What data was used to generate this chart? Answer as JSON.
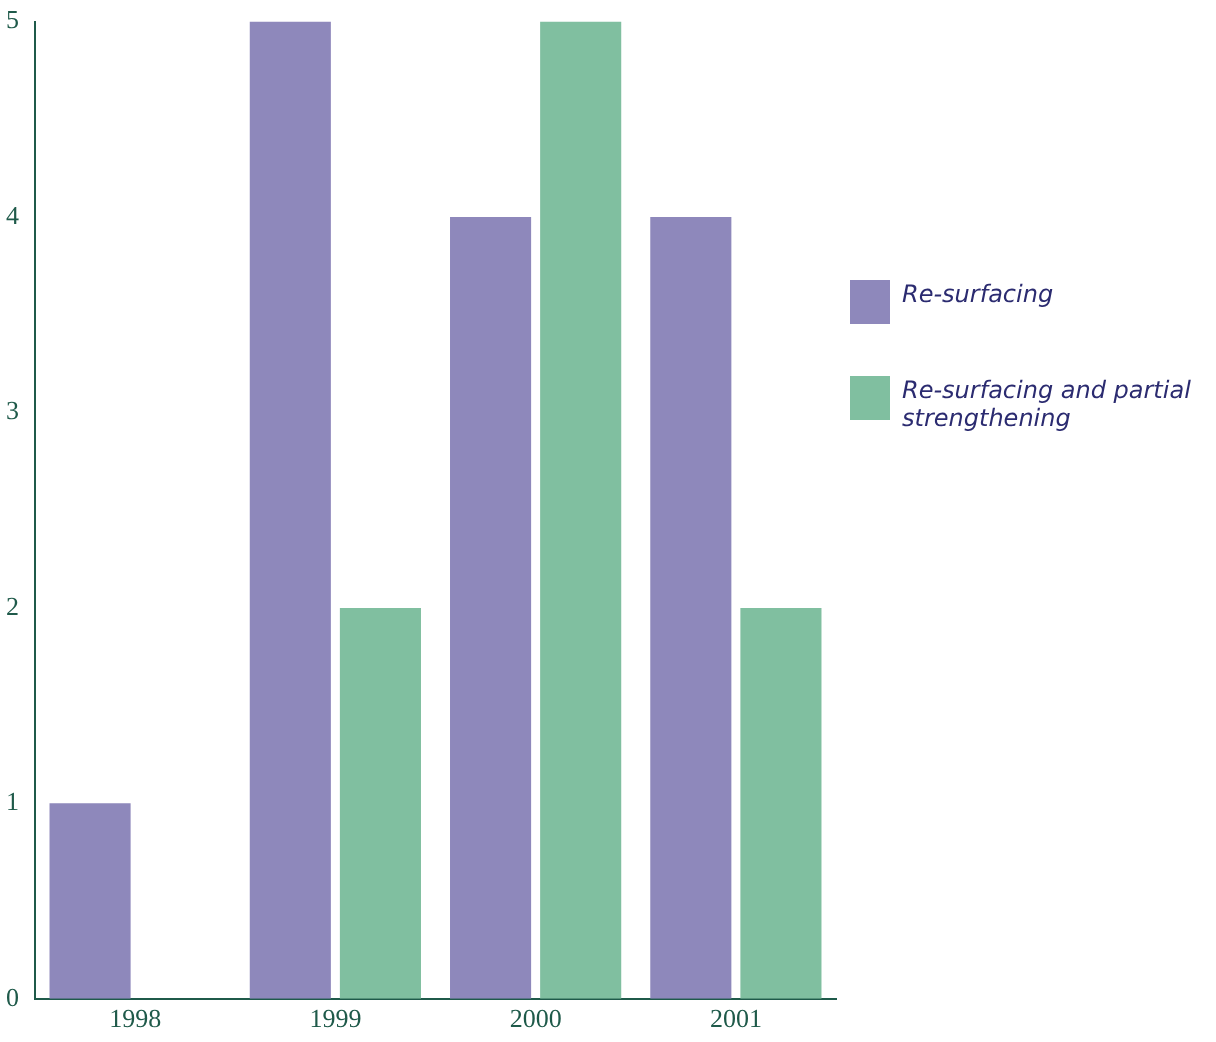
{
  "chart_data": {
    "type": "bar",
    "categories": [
      "1998",
      "1999",
      "2000",
      "2001"
    ],
    "series": [
      {
        "name": "Re-surfacing",
        "color": "#8e88bb",
        "values": [
          1,
          5,
          4,
          4
        ]
      },
      {
        "name": "Re-surfacing and partial strengthening",
        "color": "#80bfa0",
        "values": [
          null,
          2,
          5,
          2
        ]
      }
    ],
    "ylim": [
      0,
      5
    ],
    "yticks": [
      0,
      1,
      2,
      3,
      4,
      5
    ],
    "grid": false,
    "legend": "right"
  }
}
